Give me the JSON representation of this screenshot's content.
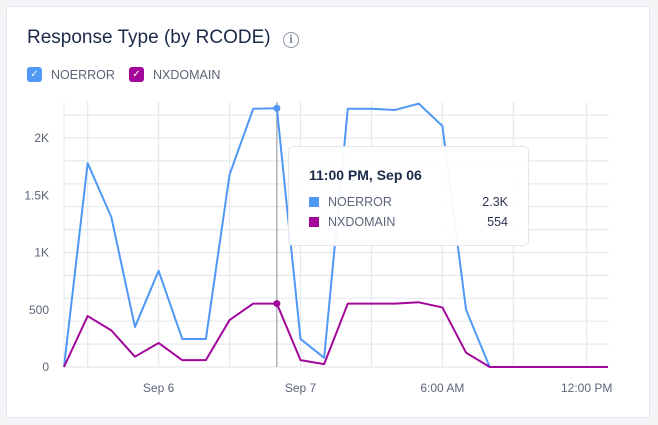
{
  "card": {
    "title": "Response Type (by RCODE)",
    "info_icon": "info-circle-icon"
  },
  "legend": [
    {
      "label": "NOERROR",
      "color": "#4f98f5",
      "checked": true
    },
    {
      "label": "NXDOMAIN",
      "color": "#a3079a",
      "checked": true
    }
  ],
  "tooltip": {
    "title": "11:00 PM, Sep 06",
    "rows": [
      {
        "label": "NOERROR",
        "value": "2.3K",
        "color": "#4f98f5"
      },
      {
        "label": "NXDOMAIN",
        "value": "554",
        "color": "#a3079a"
      }
    ],
    "hover_index": 9
  },
  "chart_data": {
    "type": "line",
    "title": "Response Type (by RCODE)",
    "xlabel": "",
    "ylabel": "",
    "ylim": [
      0,
      2300
    ],
    "grid": true,
    "legend_placement": "top-left",
    "y_ticks": [
      {
        "value": 0,
        "label": "0"
      },
      {
        "value": 500,
        "label": "500"
      },
      {
        "value": 1000,
        "label": "1K"
      },
      {
        "value": 1500,
        "label": "1.5K"
      },
      {
        "value": 2000,
        "label": "2K"
      }
    ],
    "x_ticks": [
      {
        "index": 4,
        "label": "Sep 6"
      },
      {
        "index": 10,
        "label": "Sep 7"
      },
      {
        "index": 16,
        "label": "6:00 AM"
      },
      {
        "index": 22.1,
        "label": "12:00 PM"
      }
    ],
    "series": [
      {
        "name": "NOERROR",
        "color": "#4f98f5",
        "values": [
          0,
          1780,
          1310,
          350,
          840,
          245,
          245,
          1680,
          2255,
          2260,
          245,
          80,
          2255,
          2255,
          2245,
          2300,
          2105,
          500,
          0,
          0,
          0,
          0,
          0,
          0
        ]
      },
      {
        "name": "NXDOMAIN",
        "color": "#a3079a",
        "values": [
          0,
          445,
          320,
          90,
          210,
          60,
          60,
          410,
          554,
          554,
          60,
          25,
          554,
          554,
          553,
          565,
          520,
          125,
          0,
          0,
          0,
          0,
          0,
          0
        ]
      }
    ]
  }
}
